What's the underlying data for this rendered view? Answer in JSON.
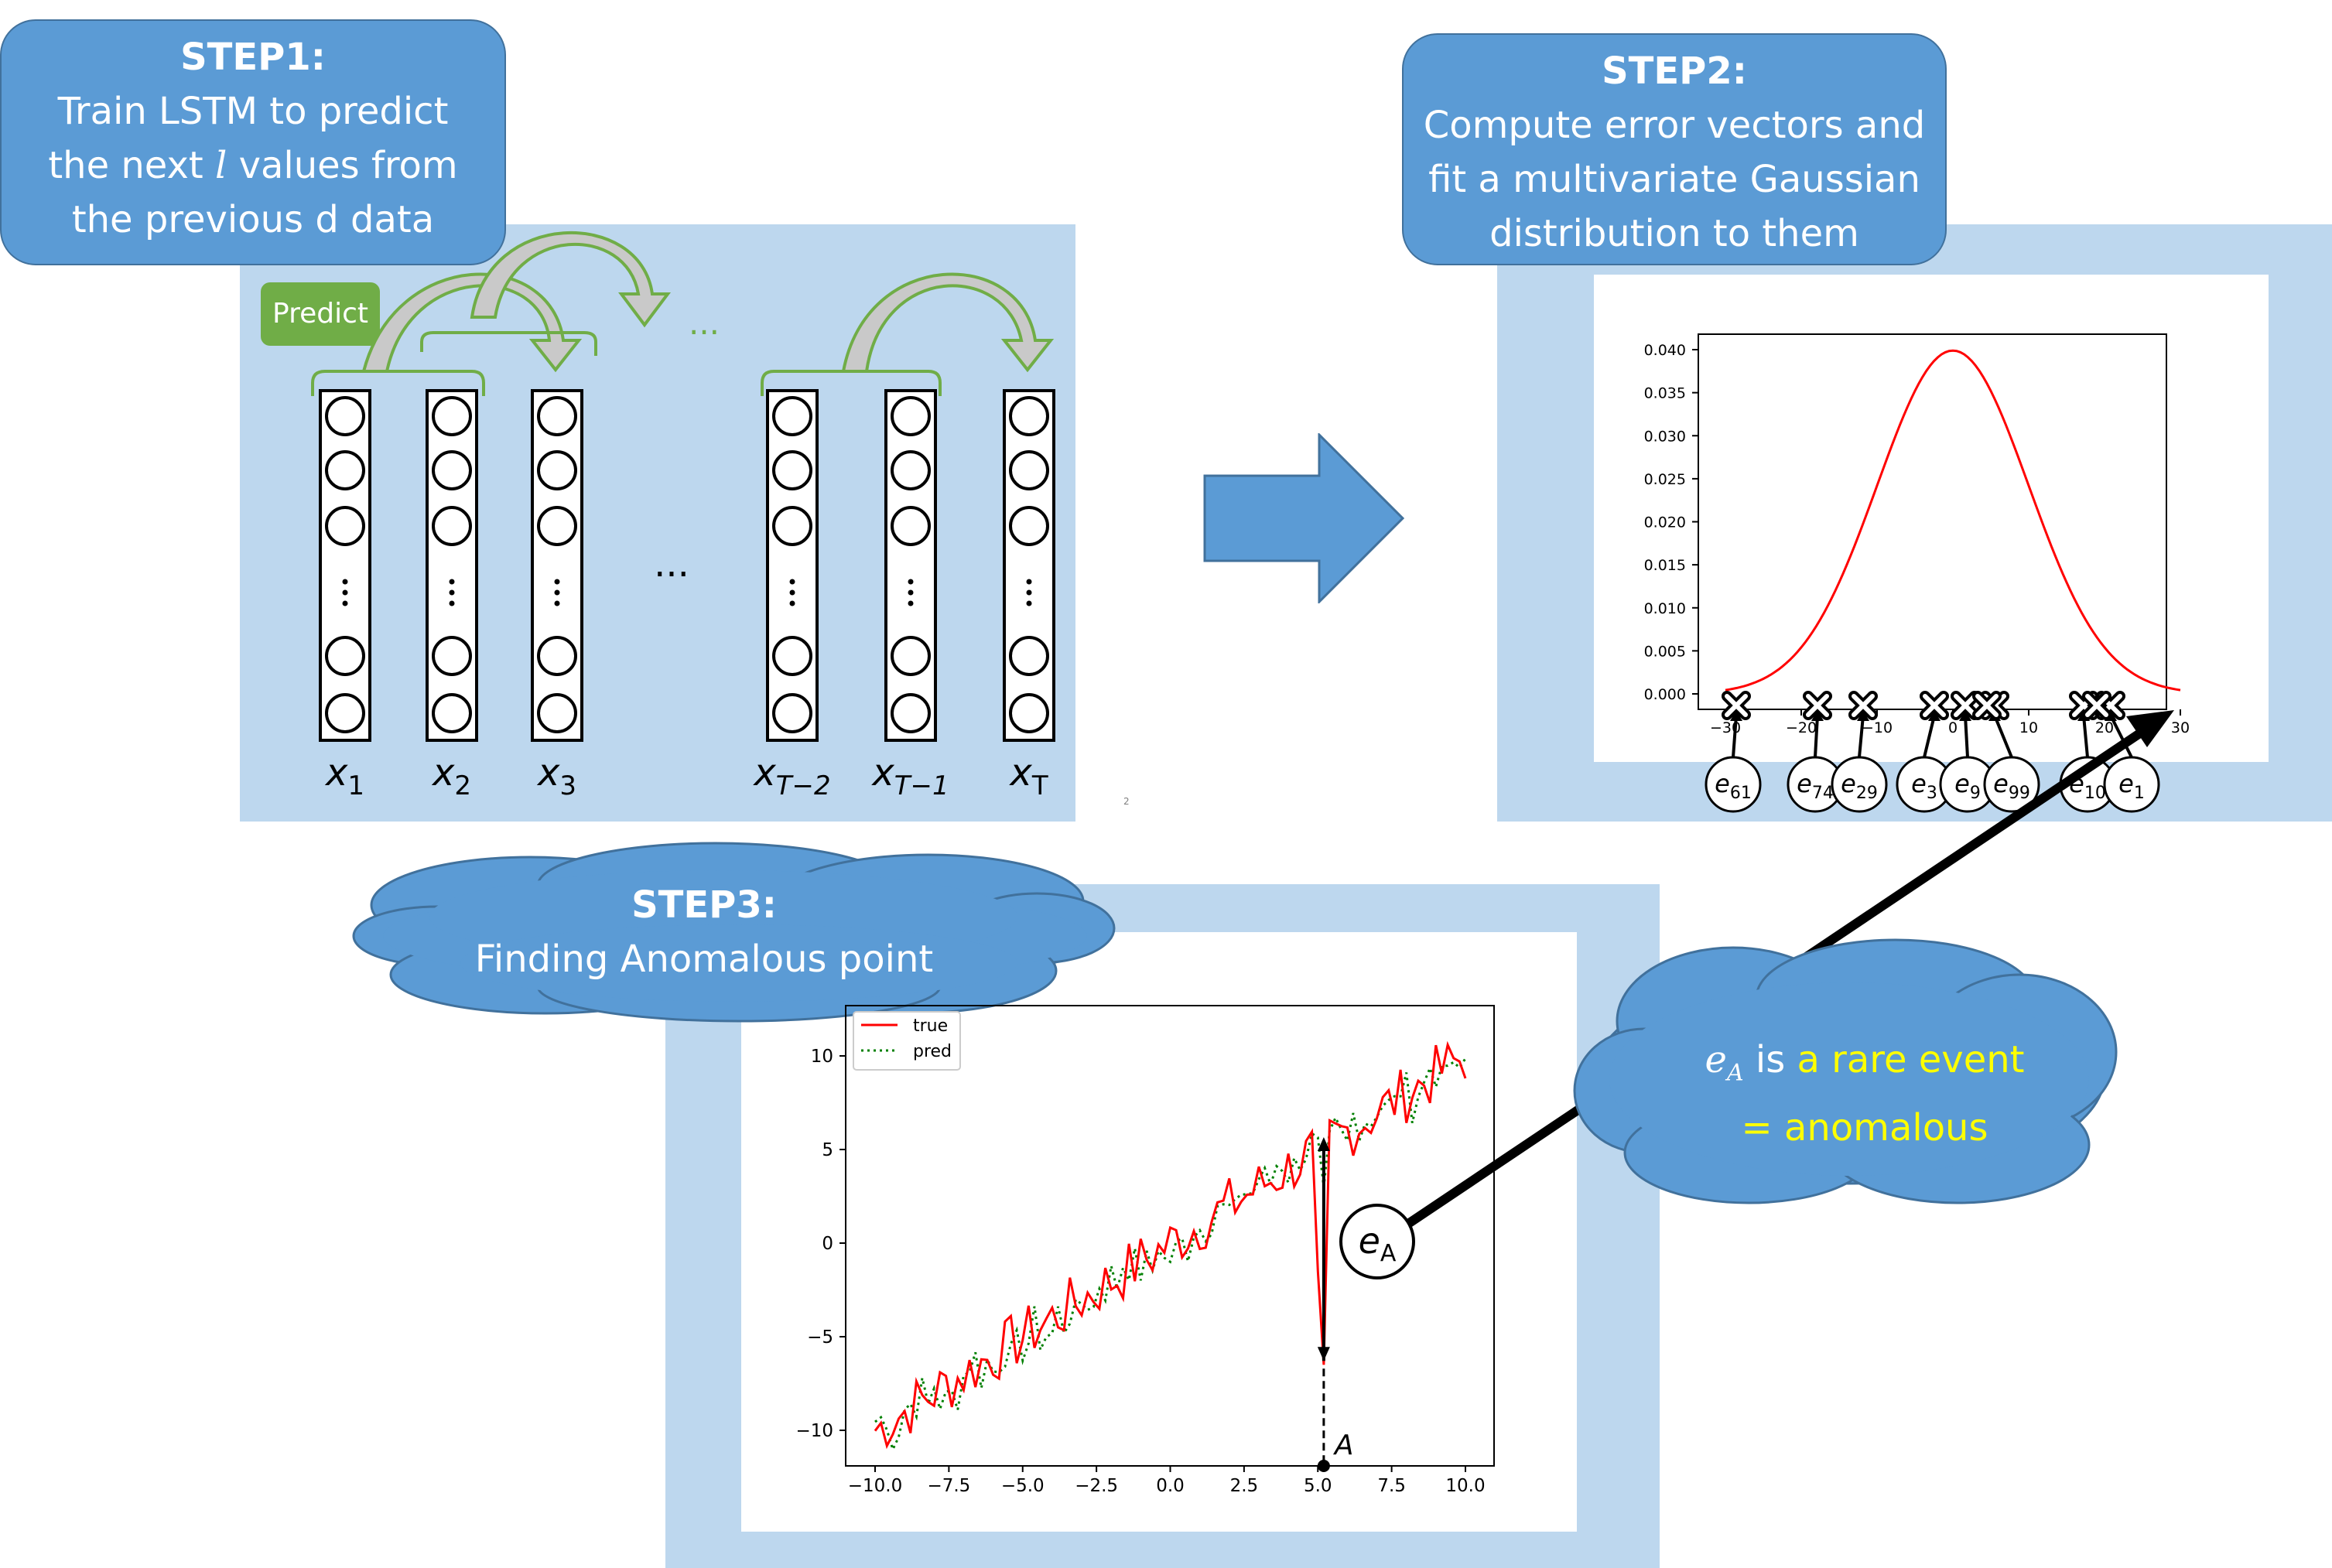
{
  "step1": {
    "heading": "STEP1:",
    "line1": "Train LSTM to predict",
    "line2_pre": "the next ",
    "line2_var": "l",
    "line2_post": " values from",
    "line3": "the previous d data",
    "predict_label": "Predict",
    "ellipsis_top": "...",
    "ellipsis_mid": "...",
    "column_labels": [
      {
        "base": "x",
        "sub": "1"
      },
      {
        "base": "x",
        "sub": "2"
      },
      {
        "base": "x",
        "sub": "3"
      },
      {
        "base": "x",
        "sub": "T−2"
      },
      {
        "base": "x",
        "sub": "T−1"
      },
      {
        "base": "x",
        "sub": "T"
      }
    ],
    "page_number": "2"
  },
  "step2": {
    "heading": "STEP2:",
    "line1": "Compute error vectors and",
    "line2": "fit a multivariate Gaussian",
    "line3": "distribution to them",
    "chart_data": {
      "type": "line",
      "title": "",
      "series": [
        {
          "mean": 0,
          "std": 10,
          "color": "#ff0000"
        }
      ],
      "xlim": [
        -30,
        30
      ],
      "ylim": [
        0,
        0.042
      ],
      "x_ticks": [
        "−30",
        "−20",
        "−10",
        "0",
        "10",
        "20",
        "30"
      ],
      "y_ticks": [
        "0.000",
        "0.005",
        "0.010",
        "0.015",
        "0.020",
        "0.025",
        "0.030",
        "0.035",
        "0.040"
      ],
      "error_markers": [
        {
          "label": "e",
          "sub": "61"
        },
        {
          "label": "e",
          "sub": "74"
        },
        {
          "label": "e",
          "sub": "29"
        },
        {
          "label": "e",
          "sub": "3"
        },
        {
          "label": "e",
          "sub": "9"
        },
        {
          "label": "e",
          "sub": "99"
        },
        {
          "label": "e",
          "sub": "10"
        },
        {
          "label": "e",
          "sub": "1"
        }
      ]
    }
  },
  "step3": {
    "heading": "STEP3:",
    "line1": "Finding Anomalous point",
    "chart_data": {
      "type": "line",
      "title": "",
      "xlim": [
        -10.5,
        10.5
      ],
      "ylim": [
        -11.8,
        12.5
      ],
      "x_ticks": [
        "−10.0",
        "−7.5",
        "−5.0",
        "−2.5",
        "0.0",
        "2.5",
        "5.0",
        "7.5",
        "10.0"
      ],
      "y_ticks": [
        "−10",
        "−5",
        "0",
        "5",
        "10"
      ],
      "legend": [
        "true",
        "pred"
      ],
      "legend_position": "top-left",
      "series": [
        {
          "name": "true",
          "color": "#ff0000",
          "style": "solid"
        },
        {
          "name": "pred",
          "color": "#008000",
          "style": "dotted"
        }
      ],
      "anomaly_point": {
        "x": 5.2,
        "y": -6.5,
        "label": "A"
      },
      "error_label_base": "e",
      "error_label_sub": "A"
    }
  },
  "callout": {
    "var_base": "e",
    "var_sub": "A",
    "text_is": " is ",
    "text_rare": "a rare event",
    "text_line2": "= anomalous"
  }
}
